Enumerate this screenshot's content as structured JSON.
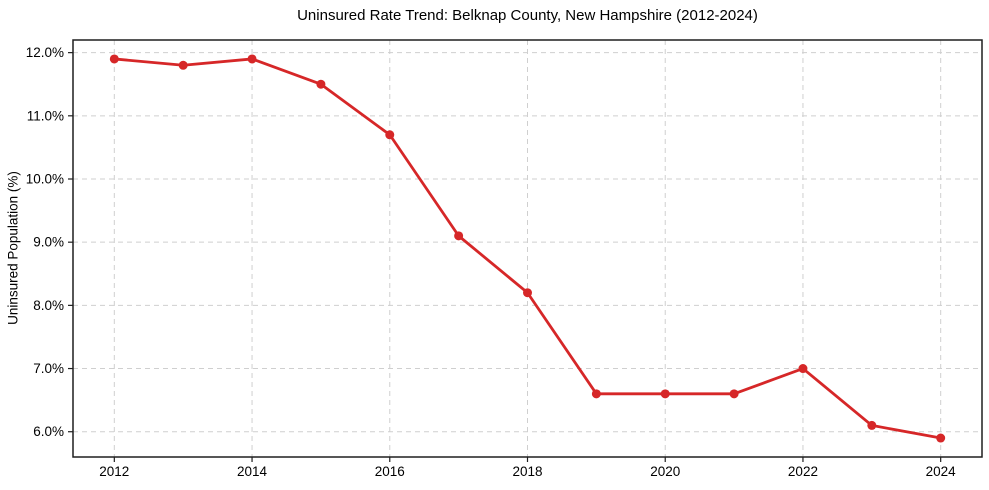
{
  "figure": {
    "background": "#ffffff"
  },
  "colors": {
    "line": "#d62728",
    "marker": "#d62728",
    "grid": "#cfcfcf",
    "spine": "#1f1f1f",
    "tick": "#1f1f1f",
    "text": "#000000"
  },
  "chart_data": {
    "type": "line",
    "title": "Uninsured Rate Trend: Belknap County, New Hampshire (2012-2024)",
    "xlabel": "",
    "ylabel": "Uninsured Population (%)",
    "x": [
      2012,
      2013,
      2014,
      2015,
      2016,
      2017,
      2018,
      2019,
      2020,
      2021,
      2022,
      2023,
      2024
    ],
    "values": [
      11.9,
      11.8,
      11.9,
      11.5,
      10.7,
      9.1,
      8.2,
      6.6,
      6.6,
      6.6,
      7.0,
      6.1,
      5.9
    ],
    "xlim": [
      2011.4,
      2024.6
    ],
    "ylim": [
      5.6,
      12.2
    ],
    "xticks": [
      2012,
      2014,
      2016,
      2018,
      2020,
      2022,
      2024
    ],
    "xtick_labels": [
      "2012",
      "2014",
      "2016",
      "2018",
      "2020",
      "2022",
      "2024"
    ],
    "yticks": [
      6.0,
      7.0,
      8.0,
      9.0,
      10.0,
      11.0,
      12.0
    ],
    "ytick_labels": [
      "6.0%",
      "7.0%",
      "8.0%",
      "9.0%",
      "10.0%",
      "11.0%",
      "12.0%"
    ],
    "grid": true,
    "grid_style": "dashed",
    "legend": false,
    "marker": "circle"
  }
}
